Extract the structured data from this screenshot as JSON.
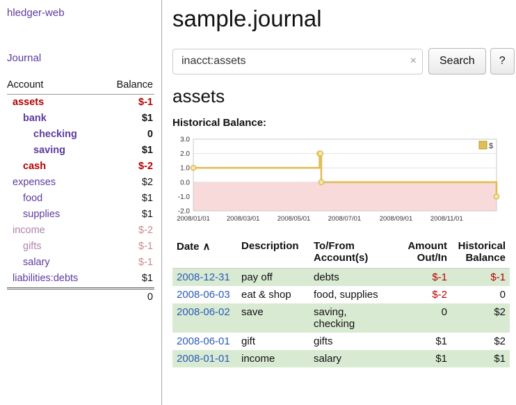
{
  "app": {
    "title": "hledger-web",
    "nav_journal": "Journal"
  },
  "colors": {
    "purple": "#5e3a9e",
    "blue": "#2a5bb8",
    "red": "#b30000",
    "softred": "#c98a8a",
    "mauve": "#b082ac",
    "green": "#d9ead3",
    "gold": "#e0bd55",
    "goldfill": "#f3e7b6",
    "golddark": "#b99a2e",
    "grid": "#e1e1e1",
    "chartborder": "#c9c9c9",
    "divider": "#aaaaaa"
  },
  "sidebar": {
    "accounts_header": "Account",
    "balance_header": "Balance",
    "rows": [
      {
        "name": "assets",
        "indent": 0,
        "balance": "$-1",
        "bold": true,
        "name_color": "red",
        "bal_color": "red"
      },
      {
        "name": "bank",
        "indent": 1,
        "balance": "$1",
        "bold": true,
        "name_color": "purple",
        "bal_color": "black"
      },
      {
        "name": "checking",
        "indent": 2,
        "balance": "0",
        "bold": true,
        "name_color": "purple",
        "bal_color": "black"
      },
      {
        "name": "saving",
        "indent": 2,
        "balance": "$1",
        "bold": true,
        "name_color": "purple",
        "bal_color": "black"
      },
      {
        "name": "cash",
        "indent": 1,
        "balance": "$-2",
        "bold": true,
        "name_color": "red",
        "bal_color": "red"
      },
      {
        "name": "expenses",
        "indent": 0,
        "balance": "$2",
        "bold": false,
        "name_color": "purple",
        "bal_color": "black"
      },
      {
        "name": "food",
        "indent": 1,
        "balance": "$1",
        "bold": false,
        "name_color": "purple",
        "bal_color": "black"
      },
      {
        "name": "supplies",
        "indent": 1,
        "balance": "$1",
        "bold": false,
        "name_color": "purple",
        "bal_color": "black"
      },
      {
        "name": "income",
        "indent": 0,
        "balance": "$-2",
        "bold": false,
        "name_color": "mauve",
        "bal_color": "softred"
      },
      {
        "name": "gifts",
        "indent": 1,
        "balance": "$-1",
        "bold": false,
        "name_color": "mauve",
        "bal_color": "softred"
      },
      {
        "name": "salary",
        "indent": 1,
        "balance": "$-1",
        "bold": false,
        "name_color": "purple",
        "bal_color": "softred"
      },
      {
        "name": "liabilities:debts",
        "indent": 0,
        "balance": "$1",
        "bold": false,
        "name_color": "purple",
        "bal_color": "black"
      }
    ],
    "total": "0"
  },
  "main": {
    "title": "sample.journal",
    "search": {
      "value": "inacct:assets",
      "clear_icon": "×",
      "button": "Search",
      "help_button": "?"
    },
    "account_title": "assets",
    "chart_label": "Historical Balance:"
  },
  "chart_data": {
    "type": "line",
    "step": true,
    "title": "Historical Balance",
    "series": [
      {
        "name": "$",
        "points": [
          {
            "date": "2008-01-01",
            "value": 1.0
          },
          {
            "date": "2008-06-01",
            "value": 2.0
          },
          {
            "date": "2008-06-02",
            "value": 2.0
          },
          {
            "date": "2008-06-03",
            "value": 0.0
          },
          {
            "date": "2008-12-31",
            "value": -1.0
          }
        ]
      }
    ],
    "ylim": [
      -2.0,
      3.0
    ],
    "yticks": [
      3.0,
      2.0,
      1.0,
      0.0,
      -1.0,
      -2.0
    ],
    "xrange": [
      "2008-01-01",
      "2008-12-31"
    ],
    "xtick_dates": [
      "2008-01-01",
      "2008-03-01",
      "2008-05-01",
      "2008-07-01",
      "2008-09-01",
      "2008-11-01"
    ],
    "xtick_labels": [
      "2008/01/01",
      "2008/03/01",
      "2008/05/01",
      "2008/07/01",
      "2008/09/01",
      "2008/11/01"
    ],
    "legend": {
      "label": "$",
      "position": "top-right"
    },
    "negative_region_color": "#f9dada",
    "grid": true
  },
  "register": {
    "headers": {
      "date": "Date",
      "sort_icon": "∧",
      "description": "Description",
      "account": "To/From Account(s)",
      "amount": "Amount Out/In",
      "balance": "Historical Balance"
    },
    "rows": [
      {
        "date": "2008-12-31",
        "description": "pay off",
        "accounts": "debts",
        "amount": "$-1",
        "balance": "$-1"
      },
      {
        "date": "2008-06-03",
        "description": "eat & shop",
        "accounts": "food, supplies",
        "amount": "$-2",
        "balance": "0"
      },
      {
        "date": "2008-06-02",
        "description": "save",
        "accounts": "saving, checking",
        "amount": "0",
        "balance": "$2"
      },
      {
        "date": "2008-06-01",
        "description": "gift",
        "accounts": "gifts",
        "amount": "$1",
        "balance": "$2"
      },
      {
        "date": "2008-01-01",
        "description": "income",
        "accounts": "salary",
        "amount": "$1",
        "balance": "$1"
      }
    ]
  }
}
